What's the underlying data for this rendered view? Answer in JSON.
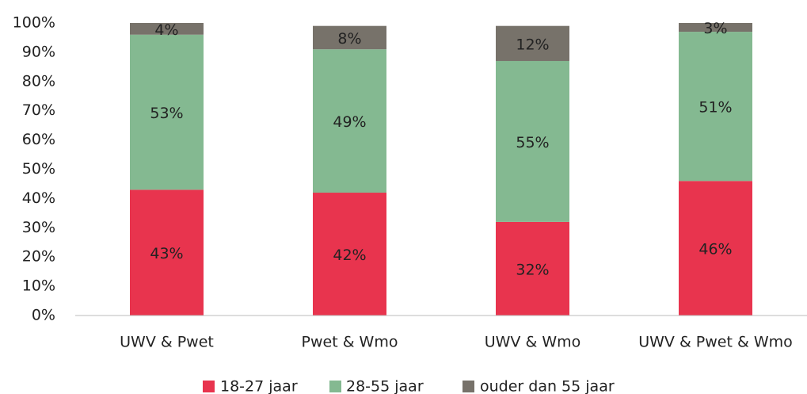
{
  "chart_data": {
    "type": "stacked_bar",
    "categories": [
      "UWV & Pwet",
      "Pwet & Wmo",
      "UWV & Wmo",
      "UWV & Pwet & Wmo"
    ],
    "series": [
      {
        "name": "18-27 jaar",
        "color": "#e8344e",
        "values": [
          43,
          42,
          32,
          46
        ],
        "value_labels": [
          "43%",
          "42%",
          "32%",
          "46%"
        ]
      },
      {
        "name": "28-55 jaar",
        "color": "#84b991",
        "values": [
          53,
          49,
          55,
          51
        ],
        "value_labels": [
          "53%",
          "49%",
          "55%",
          "51%"
        ]
      },
      {
        "name": "ouder dan 55 jaar",
        "color": "#77726a",
        "values": [
          4,
          8,
          12,
          3
        ],
        "value_labels": [
          "4%",
          "8%",
          "12%",
          "3%"
        ]
      }
    ],
    "ylim": [
      0,
      100
    ],
    "yticks": [
      {
        "value": 0,
        "label": "0%"
      },
      {
        "value": 10,
        "label": "10%"
      },
      {
        "value": 20,
        "label": "20%"
      },
      {
        "value": 30,
        "label": "30%"
      },
      {
        "value": 40,
        "label": "40%"
      },
      {
        "value": 50,
        "label": "50%"
      },
      {
        "value": 60,
        "label": "60%"
      },
      {
        "value": 70,
        "label": "70%"
      },
      {
        "value": 80,
        "label": "80%"
      },
      {
        "value": 90,
        "label": "90%"
      },
      {
        "value": 100,
        "label": "100%"
      }
    ],
    "legend": "bottom"
  }
}
